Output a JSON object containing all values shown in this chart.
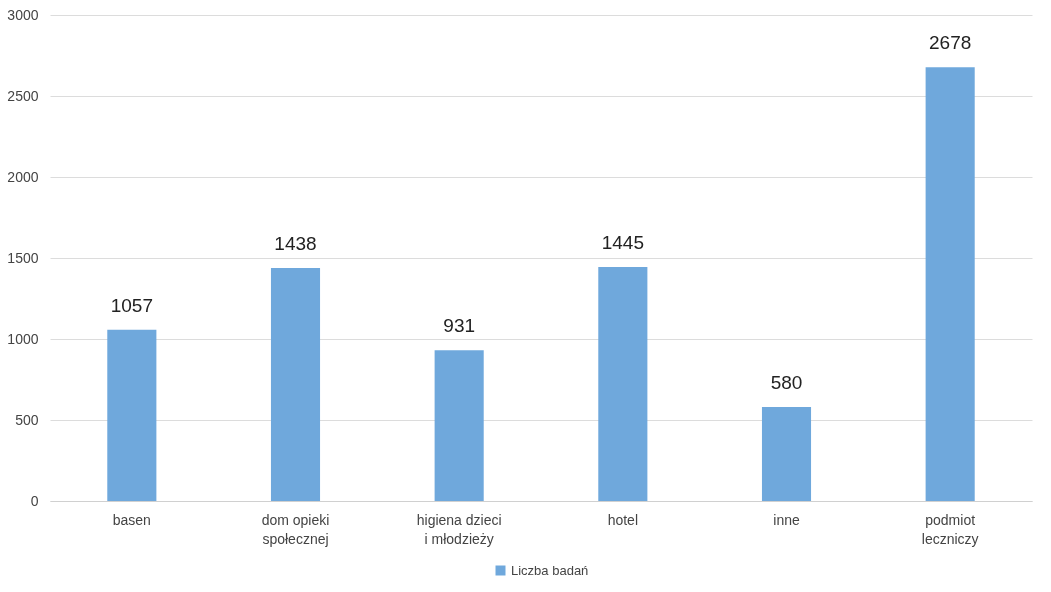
{
  "chart_data": {
    "type": "bar",
    "categories": [
      "basen",
      "dom opieki społecznej",
      "higiena dzieci i młodzieży",
      "hotel",
      "inne",
      "podmiot leczniczy"
    ],
    "series": [
      {
        "name": "Liczba badań",
        "color": "#6fa8dc",
        "values": [
          1057,
          1438,
          931,
          1445,
          580,
          2678
        ]
      }
    ],
    "ylim": [
      0,
      3000
    ],
    "yticks": [
      0,
      500,
      1000,
      1500,
      2000,
      2500,
      3000
    ],
    "grid": "y",
    "legend": "bottom",
    "data_labels": true
  }
}
